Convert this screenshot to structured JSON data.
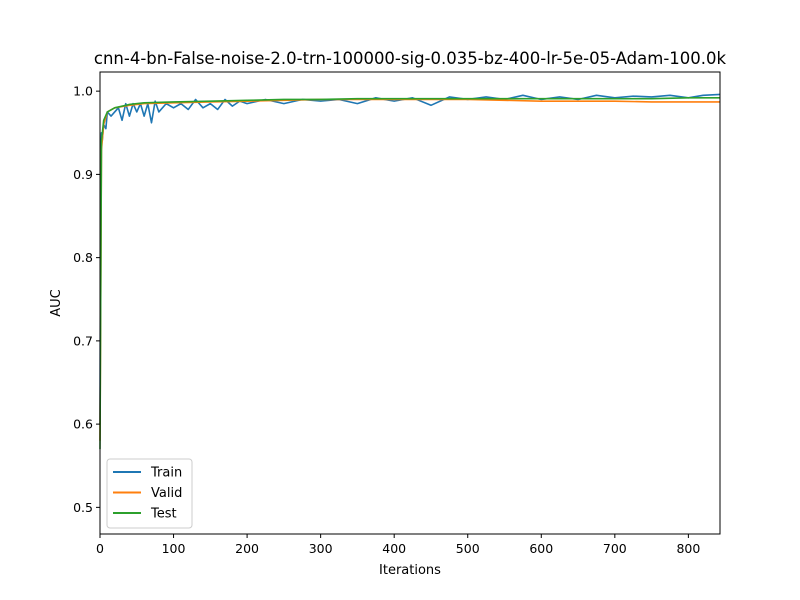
{
  "chart_data": {
    "type": "line",
    "title": "cnn-4-bn-False-noise-2.0-trn-100000-sig-0.035-bz-400-lr-5e-05-Adam-100.0k",
    "xlabel": "Iterations",
    "ylabel": "AUC",
    "xlim": [
      0,
      843
    ],
    "ylim": [
      0.468,
      1.023
    ],
    "x_ticks": [
      0,
      100,
      200,
      300,
      400,
      500,
      600,
      700,
      800
    ],
    "y_ticks": [
      0.5,
      0.6,
      0.7,
      0.8,
      0.9,
      1.0
    ],
    "x_tick_labels": [
      "0",
      "100",
      "200",
      "300",
      "400",
      "500",
      "600",
      "700",
      "800"
    ],
    "y_tick_labels": [
      "0.5",
      "0.6",
      "0.7",
      "0.8",
      "0.9",
      "1.0"
    ],
    "grid": false,
    "legend_position": "lower-left",
    "series": [
      {
        "name": "Train",
        "color": "#1f77b4",
        "x": [
          0,
          1,
          2,
          3,
          5,
          8,
          10,
          15,
          20,
          25,
          30,
          35,
          40,
          45,
          50,
          55,
          60,
          65,
          70,
          75,
          80,
          90,
          100,
          110,
          120,
          130,
          140,
          150,
          160,
          170,
          180,
          190,
          200,
          225,
          250,
          275,
          300,
          325,
          350,
          375,
          400,
          425,
          450,
          475,
          500,
          525,
          550,
          575,
          600,
          625,
          650,
          675,
          700,
          725,
          750,
          775,
          800,
          820,
          843
        ],
        "y": [
          0.6,
          0.92,
          0.95,
          0.94,
          0.96,
          0.955,
          0.975,
          0.97,
          0.975,
          0.98,
          0.965,
          0.985,
          0.97,
          0.985,
          0.975,
          0.985,
          0.97,
          0.985,
          0.962,
          0.988,
          0.975,
          0.985,
          0.98,
          0.985,
          0.978,
          0.99,
          0.98,
          0.985,
          0.978,
          0.99,
          0.982,
          0.988,
          0.985,
          0.99,
          0.985,
          0.99,
          0.988,
          0.99,
          0.985,
          0.992,
          0.988,
          0.992,
          0.983,
          0.993,
          0.99,
          0.993,
          0.99,
          0.995,
          0.99,
          0.993,
          0.99,
          0.995,
          0.992,
          0.994,
          0.993,
          0.995,
          0.992,
          0.995,
          0.996
        ]
      },
      {
        "name": "Valid",
        "color": "#ff7f0e",
        "x": [
          0,
          2,
          5,
          10,
          20,
          40,
          60,
          100,
          150,
          200,
          250,
          300,
          350,
          400,
          450,
          500,
          550,
          600,
          650,
          700,
          750,
          800,
          843
        ],
        "y": [
          0.58,
          0.93,
          0.96,
          0.975,
          0.98,
          0.983,
          0.985,
          0.986,
          0.987,
          0.988,
          0.989,
          0.99,
          0.99,
          0.99,
          0.99,
          0.99,
          0.989,
          0.988,
          0.988,
          0.988,
          0.987,
          0.987,
          0.987
        ]
      },
      {
        "name": "Test",
        "color": "#2ca02c",
        "x": [
          0,
          2,
          5,
          10,
          20,
          40,
          60,
          100,
          150,
          200,
          250,
          300,
          350,
          400,
          450,
          500,
          550,
          600,
          650,
          700,
          750,
          800,
          843
        ],
        "y": [
          0.57,
          0.94,
          0.965,
          0.975,
          0.98,
          0.984,
          0.986,
          0.987,
          0.988,
          0.989,
          0.99,
          0.99,
          0.991,
          0.991,
          0.991,
          0.991,
          0.991,
          0.991,
          0.991,
          0.991,
          0.991,
          0.992,
          0.992
        ]
      }
    ]
  }
}
